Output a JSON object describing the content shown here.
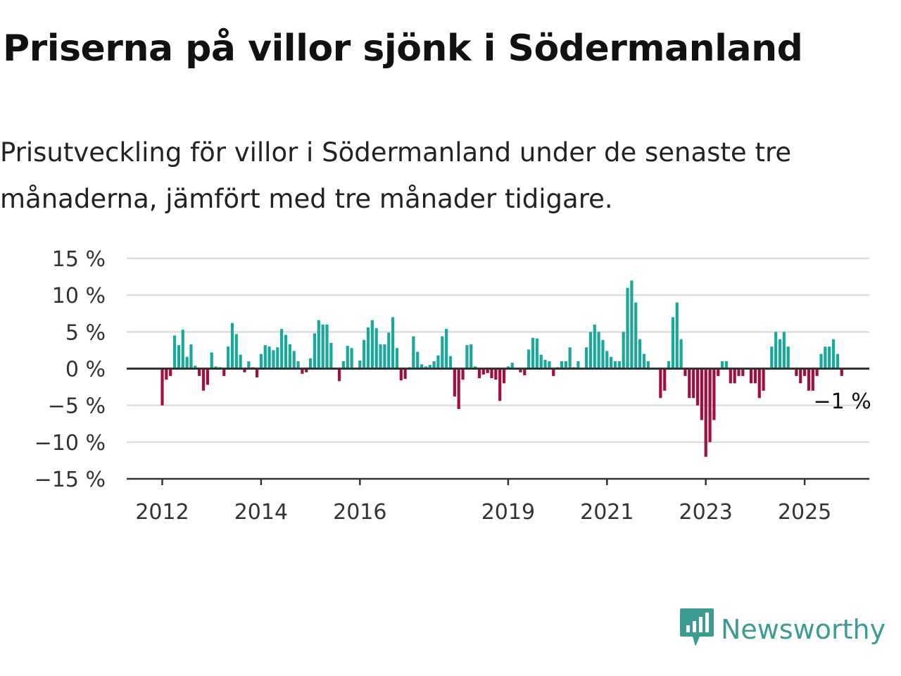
{
  "header": {
    "title": "Priserna på villor sjönk i Södermanland",
    "subtitle": "Prisutveckling för villor i Södermanland under de senaste tre månaderna, jämfört med tre månader tidigare."
  },
  "brand": {
    "name": "Newsworthy",
    "icon": "newsworthy-logo-icon",
    "color": "#3d9c92"
  },
  "colors": {
    "positive": "#1aa79c",
    "negative": "#a0103e",
    "grid": "#dddddd",
    "zero_line": "#333333"
  },
  "chart_data": {
    "type": "bar",
    "title": "Priserna på villor sjönk i Södermanland",
    "xlabel": "",
    "ylabel": "",
    "unit": "%",
    "ylim": [
      -15,
      15
    ],
    "yticks": [
      15,
      10,
      5,
      0,
      -5,
      -10,
      -15
    ],
    "ytick_labels": [
      "15 %",
      "10 %",
      "5 %",
      "0 %",
      "−5 %",
      "−10 %",
      "−15 %"
    ],
    "xticks": [
      "2012",
      "2014",
      "2016",
      "2019",
      "2021",
      "2023",
      "2025"
    ],
    "grid": true,
    "start": "2012-01",
    "frequency": "monthly",
    "annotation": {
      "text": "−1 %",
      "ref": "last"
    },
    "values": [
      -5,
      -1.5,
      -1,
      4.5,
      3.2,
      5.3,
      1.6,
      3.3,
      0.4,
      -1,
      -3,
      -2.2,
      2.2,
      0.3,
      0.2,
      -1,
      3,
      6.2,
      4.7,
      1.9,
      -0.5,
      1,
      0.2,
      -1.2,
      2,
      3.2,
      3,
      2.5,
      2.9,
      5.4,
      4.6,
      3.3,
      2.4,
      1,
      -0.7,
      -0.5,
      1.4,
      4.8,
      6.6,
      6,
      6,
      3.5,
      0.1,
      -1.7,
      1,
      3.1,
      2.8,
      0.1,
      1.1,
      3.9,
      5.6,
      6.6,
      5.5,
      3.3,
      3.3,
      4.9,
      7,
      2.8,
      -1.6,
      -1.4,
      0.2,
      4.4,
      2.3,
      0.6,
      0.3,
      0.5,
      1,
      1.8,
      4.4,
      5.4,
      1.7,
      -3.8,
      -5.5,
      -1.5,
      3.2,
      3.3,
      0.3,
      -1.3,
      -0.8,
      -0.6,
      -1.3,
      -1.5,
      -4.4,
      -2,
      0.3,
      0.8,
      0.1,
      -0.5,
      -0.9,
      2.6,
      4.2,
      4.1,
      1.9,
      1.2,
      1,
      -1,
      0.2,
      1,
      1,
      2.9,
      0.2,
      1,
      0.1,
      2.9,
      5,
      6,
      5,
      3.9,
      2.4,
      1.6,
      1,
      1,
      5,
      11,
      12,
      9,
      4,
      2,
      1,
      0,
      0,
      -4,
      -3,
      1,
      7,
      9,
      4,
      -1,
      -4,
      -4,
      -5,
      -7,
      -12,
      -10,
      -7,
      -1,
      1,
      1,
      -2,
      -2,
      -1,
      -1,
      0,
      -2,
      -2,
      -4,
      -3,
      0,
      3,
      5,
      4,
      5,
      3,
      0,
      -1,
      -2,
      -1,
      -3,
      -3,
      -1,
      2,
      3,
      3,
      4,
      2,
      -1
    ]
  }
}
